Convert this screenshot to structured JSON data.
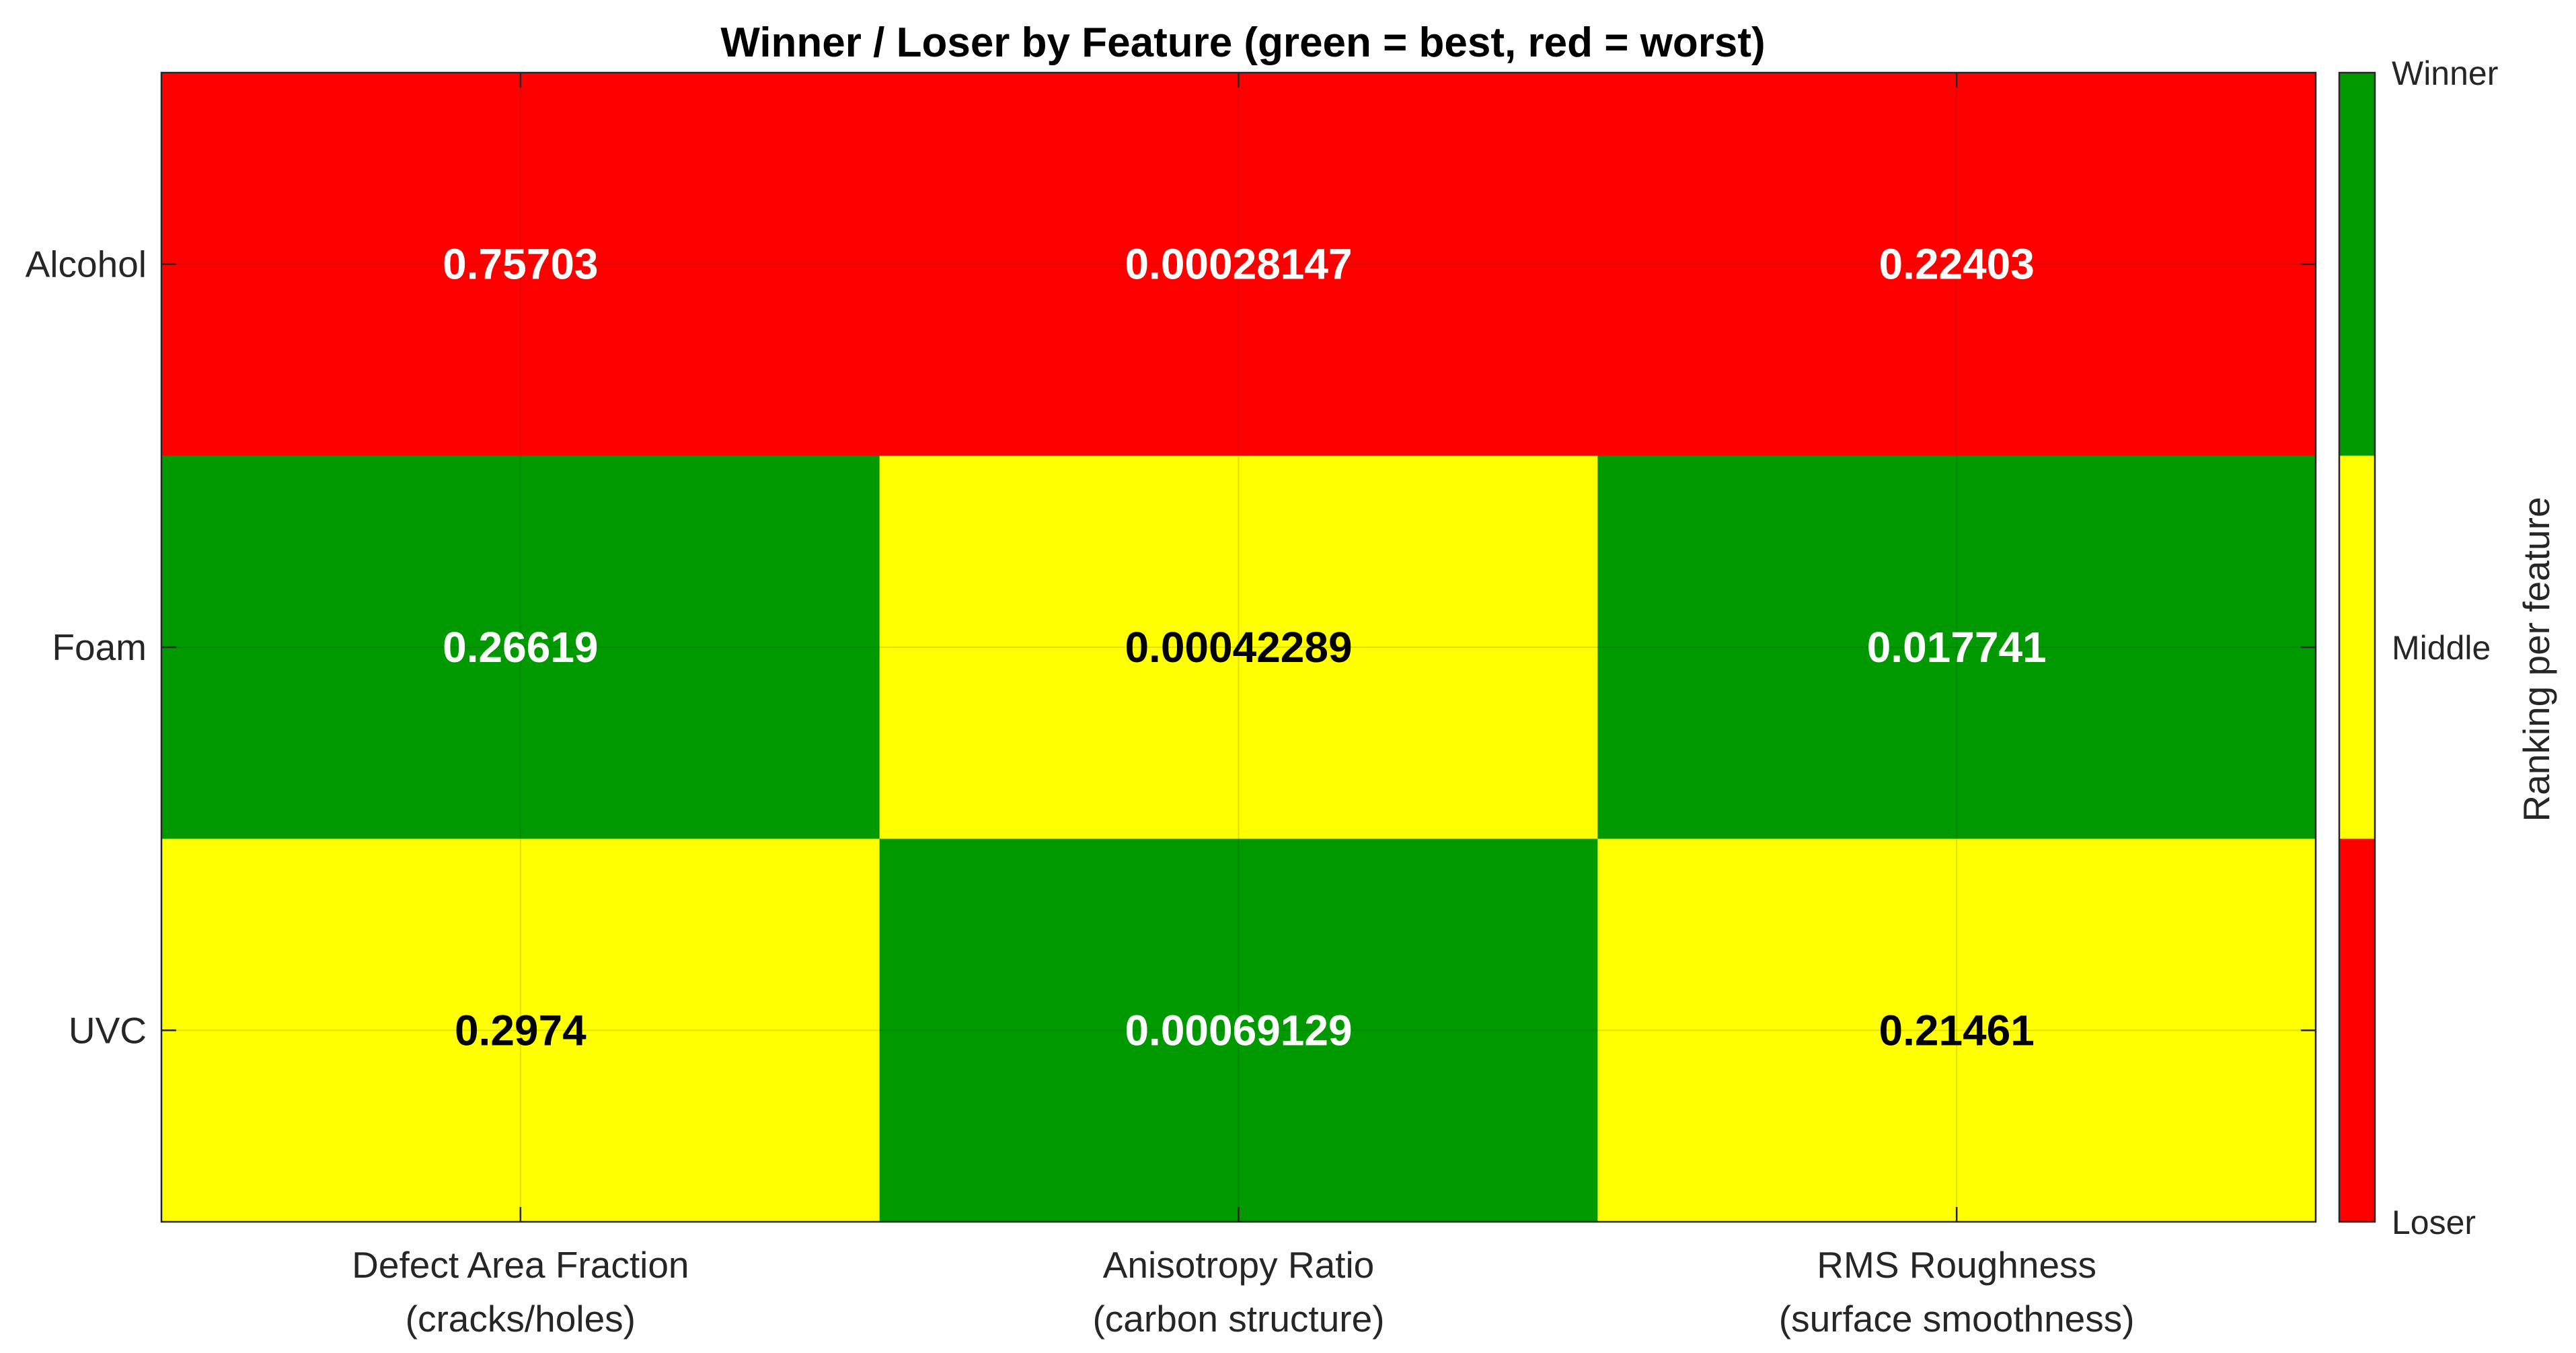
{
  "chart_data": {
    "type": "heatmap",
    "title": "Winner / Loser by Feature (green = best, red = worst)",
    "x_categories": [
      [
        "Defect Area Fraction",
        "(cracks/holes)"
      ],
      [
        "Anisotropy Ratio",
        "(carbon structure)"
      ],
      [
        "RMS Roughness",
        "(surface smoothness)"
      ]
    ],
    "y_categories": [
      "Alcohol",
      "Foam",
      "UVC"
    ],
    "values": [
      [
        "0.75703",
        "0.00028147",
        "0.22403"
      ],
      [
        "0.26619",
        "0.00042289",
        "0.017741"
      ],
      [
        "0.2974",
        "0.00069129",
        "0.21461"
      ]
    ],
    "ranking": [
      [
        "Loser",
        "Loser",
        "Loser"
      ],
      [
        "Winner",
        "Middle",
        "Winner"
      ],
      [
        "Middle",
        "Winner",
        "Middle"
      ]
    ],
    "colors": {
      "Winner": "#009900",
      "Middle": "#ffff00",
      "Loser": "#ff0000"
    },
    "label_colors": {
      "Winner": "#ffffff",
      "Middle": "#000000",
      "Loser": "#ffffff"
    },
    "colorbar": {
      "ticks": [
        "Winner",
        "Middle",
        "Loser"
      ],
      "label": "Ranking per feature"
    },
    "grid": true
  }
}
